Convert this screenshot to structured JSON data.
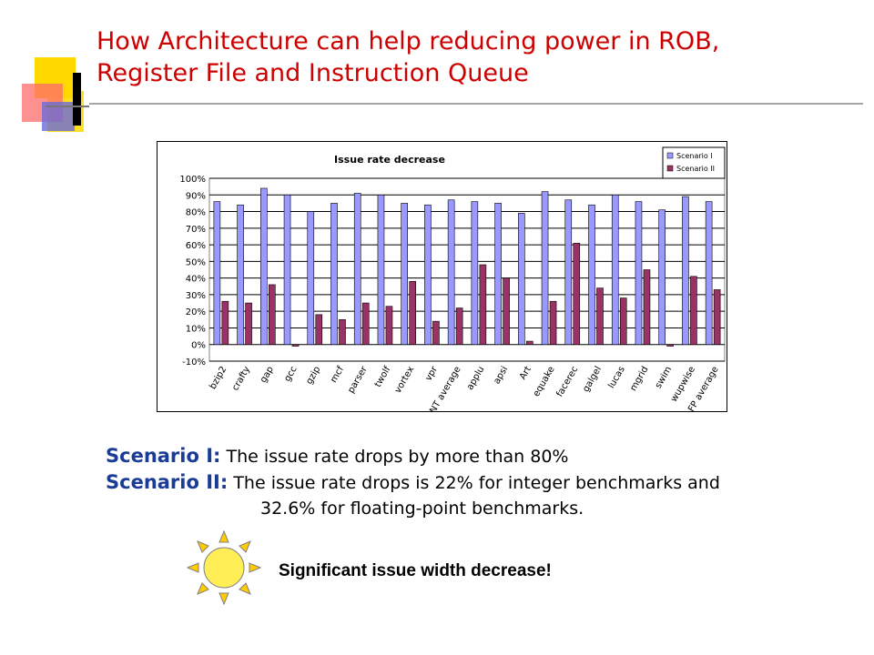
{
  "slide": {
    "title_line1": "How Architecture can help reducing power in ROB,",
    "title_line2": "Register File and Instruction Queue",
    "title_color": "#cc0000",
    "term_color": "#1a3c96"
  },
  "text": {
    "scenario1_term": "Scenario I:",
    "scenario1_text": "The issue rate drops by more than 80%",
    "scenario2_term": "Scenario II:",
    "scenario2_text": "The issue rate drops is 22% for integer benchmarks and",
    "scenario2_text_cont": "32.6% for floating-point benchmarks.",
    "conclusion": "Significant issue width decrease!"
  },
  "icons": {
    "sun": "sun-icon",
    "corner_decoration": "decorative-squares-icon"
  },
  "chart_data": {
    "type": "bar",
    "title": "Issue rate decrease",
    "xlabel": "",
    "ylabel": "",
    "ylim": [
      -0.1,
      1.0
    ],
    "y_ticks": [
      "-10%",
      "0%",
      "10%",
      "20%",
      "30%",
      "40%",
      "50%",
      "60%",
      "70%",
      "80%",
      "90%",
      "100%"
    ],
    "grid": true,
    "legend_position": "top-right",
    "categories": [
      "bzip2",
      "crafty",
      "gap",
      "gcc",
      "gzip",
      "mcf",
      "parser",
      "twolf",
      "vortex",
      "vpr",
      "INT average",
      "applu",
      "apsi",
      "Art",
      "equake",
      "facerec",
      "galgel",
      "lucas",
      "mgrid",
      "swim",
      "wupwise",
      "FP average"
    ],
    "series": [
      {
        "name": "Scenario I",
        "color": "#9999ff",
        "values": [
          0.86,
          0.84,
          0.94,
          0.9,
          0.8,
          0.85,
          0.91,
          0.9,
          0.85,
          0.84,
          0.87,
          0.86,
          0.85,
          0.79,
          0.92,
          0.87,
          0.84,
          0.9,
          0.86,
          0.81,
          0.89,
          0.86
        ]
      },
      {
        "name": "Scenario II",
        "color": "#993366",
        "values": [
          0.26,
          0.25,
          0.36,
          -0.01,
          0.18,
          0.15,
          0.25,
          0.23,
          0.38,
          0.14,
          0.22,
          0.48,
          0.4,
          0.02,
          0.26,
          0.61,
          0.34,
          0.28,
          0.45,
          -0.01,
          0.41,
          0.33
        ]
      }
    ]
  }
}
